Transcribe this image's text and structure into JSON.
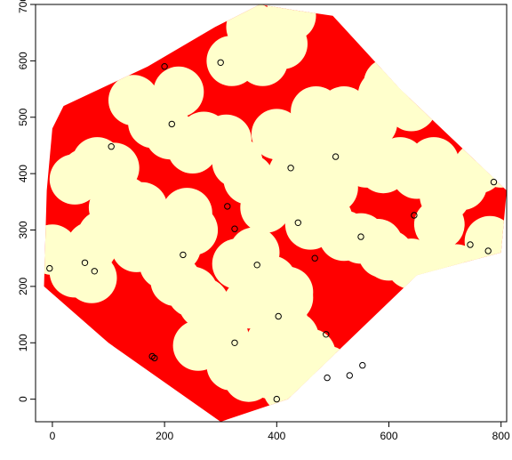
{
  "chart_data": {
    "type": "scatter",
    "title": "",
    "xlabel": "",
    "ylabel": "",
    "xlim": [
      -30,
      810
    ],
    "ylim": [
      -40,
      700
    ],
    "x_ticks": [
      0,
      200,
      400,
      600,
      800
    ],
    "y_ticks": [
      0,
      100,
      200,
      300,
      400,
      500,
      600,
      700
    ],
    "grid": false,
    "legend": "none",
    "region_color": "#ff0000",
    "disc_color": "#ffffcc",
    "point_color": "#000000",
    "disc_radius": 45,
    "region_polygon": [
      [
        -15,
        200
      ],
      [
        -10,
        370
      ],
      [
        0,
        480
      ],
      [
        20,
        520
      ],
      [
        170,
        590
      ],
      [
        290,
        660
      ],
      [
        370,
        700
      ],
      [
        430,
        690
      ],
      [
        500,
        680
      ],
      [
        620,
        550
      ],
      [
        810,
        370
      ],
      [
        800,
        260
      ],
      [
        650,
        220
      ],
      [
        420,
        0
      ],
      [
        300,
        -40
      ],
      [
        100,
        100
      ]
    ],
    "discs": [
      [
        0,
        265
      ],
      [
        40,
        225
      ],
      [
        70,
        215
      ],
      [
        40,
        390
      ],
      [
        60,
        400
      ],
      [
        80,
        420
      ],
      [
        110,
        410
      ],
      [
        110,
        340
      ],
      [
        130,
        350
      ],
      [
        160,
        340
      ],
      [
        180,
        310
      ],
      [
        150,
        270
      ],
      [
        90,
        290
      ],
      [
        70,
        270
      ],
      [
        145,
        530
      ],
      [
        180,
        490
      ],
      [
        210,
        470
      ],
      [
        225,
        545
      ],
      [
        250,
        445
      ],
      [
        270,
        465
      ],
      [
        310,
        460
      ],
      [
        320,
        600
      ],
      [
        355,
        660
      ],
      [
        375,
        600
      ],
      [
        410,
        630
      ],
      [
        425,
        680
      ],
      [
        330,
        420
      ],
      [
        350,
        390
      ],
      [
        380,
        340
      ],
      [
        400,
        360
      ],
      [
        430,
        400
      ],
      [
        450,
        390
      ],
      [
        500,
        375
      ],
      [
        460,
        310
      ],
      [
        490,
        320
      ],
      [
        520,
        290
      ],
      [
        550,
        285
      ],
      [
        580,
        275
      ],
      [
        590,
        260
      ],
      [
        600,
        255
      ],
      [
        640,
        240
      ],
      [
        660,
        230
      ],
      [
        690,
        230
      ],
      [
        720,
        230
      ],
      [
        800,
        420
      ],
      [
        760,
        410
      ],
      [
        730,
        380
      ],
      [
        700,
        360
      ],
      [
        690,
        310
      ],
      [
        780,
        280
      ],
      [
        240,
        330
      ],
      [
        250,
        300
      ],
      [
        220,
        270
      ],
      [
        200,
        240
      ],
      [
        220,
        210
      ],
      [
        250,
        190
      ],
      [
        270,
        170
      ],
      [
        290,
        150
      ],
      [
        280,
        110
      ],
      [
        305,
        110
      ],
      [
        330,
        240
      ],
      [
        360,
        260
      ],
      [
        390,
        210
      ],
      [
        420,
        190
      ],
      [
        410,
        140
      ],
      [
        430,
        110
      ],
      [
        460,
        80
      ],
      [
        490,
        50
      ],
      [
        520,
        20
      ],
      [
        500,
        10
      ],
      [
        470,
        0
      ],
      [
        420,
        20
      ],
      [
        390,
        45
      ],
      [
        350,
        40
      ],
      [
        320,
        60
      ],
      [
        300,
        100
      ],
      [
        260,
        95
      ],
      [
        350,
        170
      ],
      [
        390,
        100
      ],
      [
        420,
        180
      ],
      [
        470,
        510
      ],
      [
        490,
        500
      ],
      [
        520,
        510
      ],
      [
        560,
        420
      ],
      [
        590,
        410
      ],
      [
        620,
        420
      ],
      [
        650,
        400
      ],
      [
        680,
        420
      ],
      [
        520,
        440
      ],
      [
        570,
        490
      ],
      [
        590,
        540
      ],
      [
        600,
        560
      ],
      [
        640,
        520
      ],
      [
        480,
        470
      ],
      [
        460,
        460
      ],
      [
        430,
        450
      ],
      [
        400,
        470
      ],
      [
        500,
        500
      ],
      [
        540,
        450
      ],
      [
        560,
        440
      ]
    ],
    "points": [
      [
        -5,
        232
      ],
      [
        58,
        242
      ],
      [
        75,
        227
      ],
      [
        105,
        448
      ],
      [
        178,
        76
      ],
      [
        182,
        73
      ],
      [
        200,
        590
      ],
      [
        213,
        488
      ],
      [
        233,
        256
      ],
      [
        300,
        597
      ],
      [
        312,
        342
      ],
      [
        325,
        100
      ],
      [
        325,
        302
      ],
      [
        365,
        238
      ],
      [
        403,
        147
      ],
      [
        400,
        0
      ],
      [
        425,
        410
      ],
      [
        438,
        313
      ],
      [
        468,
        250
      ],
      [
        488,
        115
      ],
      [
        490,
        38
      ],
      [
        505,
        430
      ],
      [
        530,
        42
      ],
      [
        550,
        288
      ],
      [
        553,
        60
      ],
      [
        645,
        326
      ],
      [
        745,
        274
      ],
      [
        777,
        263
      ],
      [
        787,
        385
      ]
    ]
  }
}
